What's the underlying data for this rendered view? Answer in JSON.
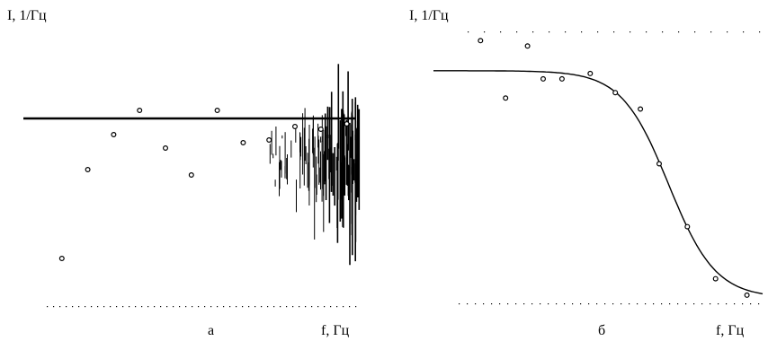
{
  "charts": [
    {
      "ylabel": "I, 1/Гц",
      "xlabel": "f, Гц",
      "caption": "а"
    },
    {
      "ylabel": "I, 1/Гц",
      "xlabel": "f, Гц",
      "caption": "б"
    }
  ],
  "chart_data": [
    {
      "type": "scatter",
      "xlabel": "f, Гц",
      "ylabel": "I, 1/Гц",
      "grid": false,
      "x": [
        1,
        2,
        3,
        4,
        5,
        6,
        7,
        8,
        9,
        10,
        11,
        12
      ],
      "y": [
        0.14,
        0.47,
        0.6,
        0.69,
        0.55,
        0.45,
        0.69,
        0.57,
        0.58,
        0.63,
        0.62,
        0.64
      ],
      "fit_y": 0.66
    },
    {
      "type": "scatter",
      "xlabel": "f, Гц",
      "ylabel": "I, 1/Гц",
      "grid": false,
      "x": [
        1.5,
        2.3,
        3.0,
        3.5,
        4.1,
        5.0,
        5.8,
        6.6,
        7.2,
        8.1,
        9.0,
        10.0
      ],
      "y": [
        0.95,
        0.74,
        0.93,
        0.81,
        0.81,
        0.83,
        0.76,
        0.7,
        0.5,
        0.27,
        0.08,
        0.02
      ],
      "fit_y": [
        0.83,
        0.83,
        0.83,
        0.83,
        0.83,
        0.82,
        0.78,
        0.66,
        0.46,
        0.24,
        0.08,
        0.02
      ]
    }
  ]
}
